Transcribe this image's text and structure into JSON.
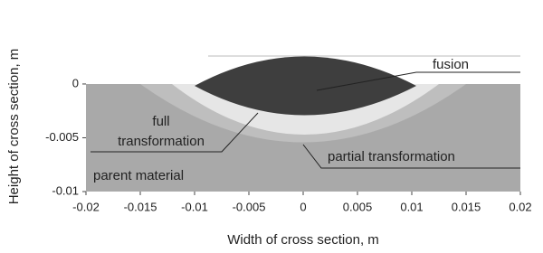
{
  "chart_data": {
    "type": "region",
    "x_label": "Width of cross section, m",
    "y_label": "Height of cross section, m",
    "xlim": [
      -0.02,
      0.02
    ],
    "xticks": [
      -0.02,
      -0.015,
      -0.01,
      -0.005,
      0,
      0.005,
      0.01,
      0.015,
      0.02
    ],
    "ylim": [
      -0.01,
      0.0026
    ],
    "yticks": [
      0,
      -0.005,
      -0.01
    ],
    "annotations": [
      "fusion",
      "full",
      "transformation",
      "partial transformation",
      "parent material"
    ]
  }
}
